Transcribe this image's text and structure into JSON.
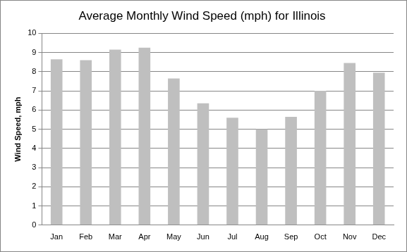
{
  "chart_data": {
    "type": "bar",
    "title": "Average Monthly Wind Speed (mph) for Illinois",
    "y_label": "Wind Speed, mph",
    "categories": [
      "Jan",
      "Feb",
      "Mar",
      "Apr",
      "May",
      "Jun",
      "Jul",
      "Aug",
      "Sep",
      "Oct",
      "Nov",
      "Dec"
    ],
    "values": [
      8.65,
      8.6,
      9.15,
      9.25,
      7.65,
      6.35,
      5.6,
      5.0,
      5.65,
      7.0,
      8.45,
      7.95
    ],
    "color": "#bfbfbf",
    "ylim": [
      0,
      10
    ],
    "yticks": [
      0,
      1,
      2,
      3,
      4,
      5,
      6,
      7,
      8,
      9,
      10
    ],
    "grid": true
  }
}
